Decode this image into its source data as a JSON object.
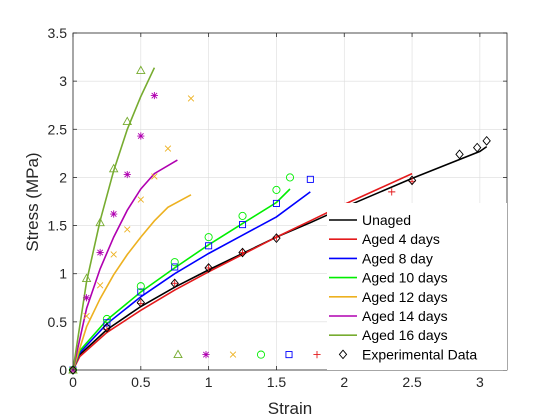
{
  "chart_data": {
    "type": "line",
    "title": "",
    "xlabel": "Strain",
    "ylabel": "Stress (MPa)",
    "xlim": [
      0,
      3.2
    ],
    "ylim": [
      0,
      3.5
    ],
    "xticks": [
      "0",
      "0.5",
      "1",
      "1.5",
      "2",
      "2.5",
      "3"
    ],
    "xtick_values": [
      0,
      0.5,
      1,
      1.5,
      2,
      2.5,
      3
    ],
    "yticks": [
      "0",
      "0.5",
      "1",
      "1.5",
      "2",
      "2.5",
      "3",
      "3.5"
    ],
    "ytick_values": [
      0,
      0.5,
      1,
      1.5,
      2,
      2.5,
      3,
      3.5
    ],
    "grid": true,
    "legend_position": "bottom-right",
    "series": [
      {
        "name": "Unaged",
        "color": "#000000",
        "curve": [
          [
            0,
            0
          ],
          [
            0.05,
            0.16
          ],
          [
            0.25,
            0.42
          ],
          [
            0.5,
            0.66
          ],
          [
            0.75,
            0.86
          ],
          [
            1,
            1.04
          ],
          [
            1.25,
            1.21
          ],
          [
            1.5,
            1.38
          ],
          [
            1.75,
            1.53
          ],
          [
            2,
            1.69
          ],
          [
            2.25,
            1.84
          ],
          [
            2.5,
            1.99
          ],
          [
            2.75,
            2.13
          ],
          [
            3,
            2.27
          ],
          [
            3.05,
            2.32
          ]
        ]
      },
      {
        "name": "Aged 4 days",
        "color": "#e41a1c",
        "curve": [
          [
            0,
            0
          ],
          [
            0.05,
            0.14
          ],
          [
            0.25,
            0.39
          ],
          [
            0.5,
            0.62
          ],
          [
            0.75,
            0.83
          ],
          [
            1,
            1.02
          ],
          [
            1.25,
            1.2
          ],
          [
            1.5,
            1.38
          ],
          [
            1.75,
            1.55
          ],
          [
            2,
            1.72
          ],
          [
            2.25,
            1.88
          ],
          [
            2.5,
            2.04
          ]
        ],
        "markers": [
          [
            0,
            0
          ],
          [
            0.25,
            0.42
          ],
          [
            0.5,
            0.69
          ],
          [
            0.75,
            0.9
          ],
          [
            1,
            1.06
          ],
          [
            1.25,
            1.22
          ],
          [
            1.5,
            1.38
          ],
          [
            2,
            1.65
          ],
          [
            2.35,
            1.85
          ],
          [
            2.5,
            1.96
          ]
        ]
      },
      {
        "name": "Aged 8 day",
        "color": "#0000ff",
        "curve": [
          [
            0,
            0
          ],
          [
            0.05,
            0.18
          ],
          [
            0.25,
            0.48
          ],
          [
            0.5,
            0.76
          ],
          [
            0.75,
            1.0
          ],
          [
            1,
            1.21
          ],
          [
            1.25,
            1.4
          ],
          [
            1.5,
            1.59
          ],
          [
            1.75,
            1.85
          ]
        ],
        "markers": [
          [
            0,
            0
          ],
          [
            0.25,
            0.49
          ],
          [
            0.5,
            0.81
          ],
          [
            0.75,
            1.07
          ],
          [
            1,
            1.29
          ],
          [
            1.25,
            1.51
          ],
          [
            1.5,
            1.73
          ],
          [
            1.75,
            1.98
          ]
        ]
      },
      {
        "name": "Aged 10 days",
        "color": "#00ee00",
        "curve": [
          [
            0,
            0
          ],
          [
            0.05,
            0.2
          ],
          [
            0.25,
            0.52
          ],
          [
            0.5,
            0.81
          ],
          [
            0.75,
            1.06
          ],
          [
            1,
            1.3
          ],
          [
            1.25,
            1.52
          ],
          [
            1.5,
            1.74
          ],
          [
            1.6,
            1.88
          ]
        ],
        "markers": [
          [
            0,
            0
          ],
          [
            0.25,
            0.53
          ],
          [
            0.5,
            0.87
          ],
          [
            0.75,
            1.12
          ],
          [
            1,
            1.38
          ],
          [
            1.25,
            1.6
          ],
          [
            1.5,
            1.87
          ],
          [
            1.6,
            2.0
          ]
        ]
      },
      {
        "name": "Aged 12 days",
        "color": "#edb120",
        "curve": [
          [
            0,
            0
          ],
          [
            0.1,
            0.45
          ],
          [
            0.2,
            0.74
          ],
          [
            0.3,
            0.99
          ],
          [
            0.4,
            1.2
          ],
          [
            0.5,
            1.38
          ],
          [
            0.6,
            1.55
          ],
          [
            0.7,
            1.69
          ],
          [
            0.87,
            1.82
          ]
        ],
        "markers": [
          [
            0,
            0
          ],
          [
            0.1,
            0.56
          ],
          [
            0.2,
            0.88
          ],
          [
            0.3,
            1.2
          ],
          [
            0.4,
            1.46
          ],
          [
            0.5,
            1.77
          ],
          [
            0.6,
            2.01
          ],
          [
            0.7,
            2.3
          ],
          [
            0.87,
            2.82
          ]
        ]
      },
      {
        "name": "Aged 14 days",
        "color": "#b000b0",
        "curve": [
          [
            0,
            0
          ],
          [
            0.1,
            0.64
          ],
          [
            0.2,
            1.05
          ],
          [
            0.3,
            1.38
          ],
          [
            0.4,
            1.66
          ],
          [
            0.5,
            1.88
          ],
          [
            0.6,
            2.04
          ],
          [
            0.77,
            2.18
          ]
        ],
        "markers": [
          [
            0,
            0
          ],
          [
            0.1,
            0.75
          ],
          [
            0.2,
            1.22
          ],
          [
            0.3,
            1.62
          ],
          [
            0.4,
            2.03
          ],
          [
            0.5,
            2.43
          ],
          [
            0.6,
            2.85
          ]
        ]
      },
      {
        "name": "Aged 16 days",
        "color": "#77ac30",
        "curve": [
          [
            0,
            0
          ],
          [
            0.1,
            0.92
          ],
          [
            0.2,
            1.55
          ],
          [
            0.3,
            2.07
          ],
          [
            0.4,
            2.5
          ],
          [
            0.5,
            2.84
          ],
          [
            0.6,
            3.14
          ]
        ],
        "markers": [
          [
            0,
            0
          ],
          [
            0.1,
            0.95
          ],
          [
            0.2,
            1.53
          ],
          [
            0.3,
            2.09
          ],
          [
            0.4,
            2.58
          ],
          [
            0.5,
            3.11
          ]
        ]
      },
      {
        "name": "Experimental Data",
        "color": "#000000",
        "markers": [
          [
            0,
            0
          ],
          [
            0.25,
            0.44
          ],
          [
            0.5,
            0.7
          ],
          [
            0.75,
            0.9
          ],
          [
            1,
            1.06
          ],
          [
            1.25,
            1.22
          ],
          [
            1.5,
            1.37
          ],
          [
            2.5,
            1.97
          ],
          [
            2.85,
            2.24
          ],
          [
            2.98,
            2.31
          ],
          [
            3.05,
            2.38
          ]
        ]
      }
    ],
    "legend": [
      {
        "label": "Unaged",
        "color": "#000000"
      },
      {
        "label": "Aged 4 days",
        "color": "#e41a1c"
      },
      {
        "label": "Aged 8 day",
        "color": "#0000ff"
      },
      {
        "label": "Aged 10 days",
        "color": "#00ee00"
      },
      {
        "label": "Aged 12 days",
        "color": "#edb120"
      },
      {
        "label": "Aged 14 days",
        "color": "#b000b0"
      },
      {
        "label": "Aged 16 days",
        "color": "#77ac30"
      },
      {
        "label": "Experimental Data",
        "color": "#000000"
      }
    ],
    "marker_key": [
      {
        "marker": "triangle",
        "color": "#77ac30"
      },
      {
        "marker": "asterisk",
        "color": "#b000b0"
      },
      {
        "marker": "x",
        "color": "#edb120"
      },
      {
        "marker": "circle",
        "color": "#00ee00"
      },
      {
        "marker": "square",
        "color": "#0000ff"
      },
      {
        "marker": "plus",
        "color": "#e41a1c"
      },
      {
        "marker": "diamond",
        "color": "#000000"
      }
    ]
  }
}
